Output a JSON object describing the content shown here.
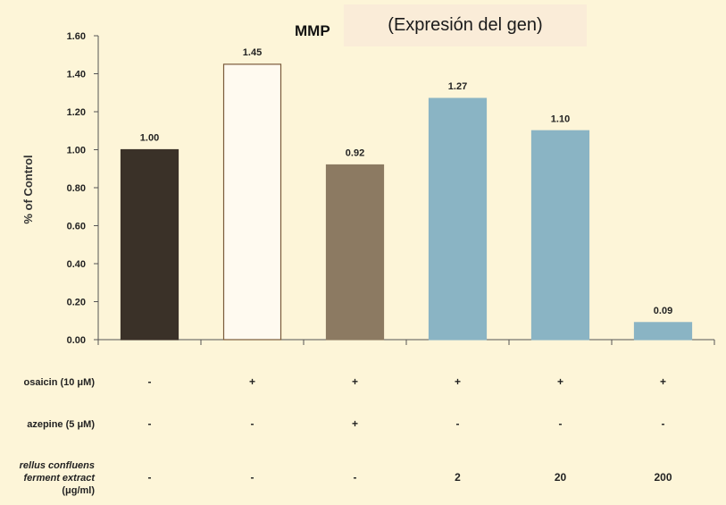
{
  "chart_data": {
    "type": "bar",
    "title": "MMP",
    "ylabel": "% of Control",
    "ylim": [
      0,
      1.6
    ],
    "yticks": [
      "0.00",
      "0.20",
      "0.40",
      "0.60",
      "0.80",
      "1.00",
      "1.20",
      "1.40",
      "1.60"
    ],
    "values": [
      1.0,
      1.45,
      0.92,
      1.27,
      1.1,
      0.09
    ],
    "value_labels": [
      "1.00",
      "1.45",
      "0.92",
      "1.27",
      "1.10",
      "0.09"
    ],
    "bar_colors": [
      "#3a3128",
      "#fffaf0",
      "#8c7a62",
      "#8ab4c4",
      "#8ab4c4",
      "#8ab4c4"
    ],
    "bar_edge_colors": [
      "#3a3128",
      "#7a5b3a",
      "#8c7a62",
      "#8ab4c4",
      "#8ab4c4",
      "#8ab4c4"
    ],
    "conditions": [
      {
        "label_lines": [
          "osaicin (10 μM)"
        ],
        "italic": false,
        "values": [
          "-",
          "+",
          "+",
          "+",
          "+",
          "+"
        ]
      },
      {
        "label_lines": [
          "azepine (5 μM)"
        ],
        "italic": false,
        "values": [
          "-",
          "-",
          "+",
          "-",
          "-",
          "-"
        ]
      },
      {
        "label_lines": [
          "rellus confluens",
          "ferment extract",
          "(μg/ml)"
        ],
        "italic": true,
        "values": [
          "-",
          "-",
          "-",
          "2",
          "20",
          "200"
        ]
      }
    ]
  },
  "overlay": {
    "text": "(Expresión del gen)"
  }
}
